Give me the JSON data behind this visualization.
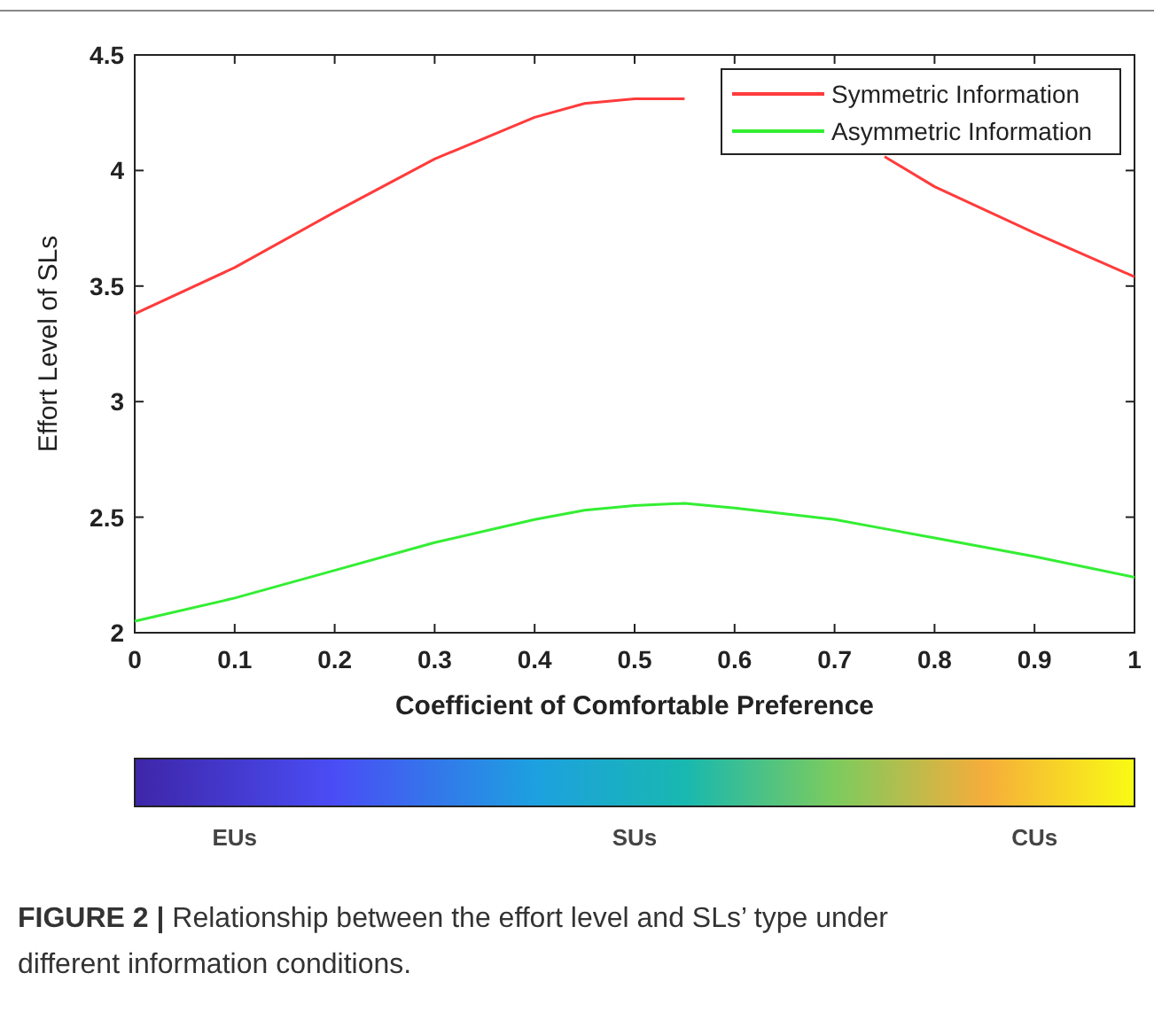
{
  "chart_data": {
    "type": "line",
    "xlabel": "Coefficient of Comfortable Preference",
    "ylabel": "Effort Level of SLs",
    "x": [
      0,
      0.1,
      0.2,
      0.3,
      0.4,
      0.45,
      0.5,
      0.55,
      0.6,
      0.7,
      0.75,
      0.8,
      0.9,
      1
    ],
    "series": [
      {
        "name": "Symmetric Information",
        "color": "#ff3b3b",
        "values": [
          3.38,
          3.58,
          3.82,
          4.05,
          4.23,
          4.29,
          4.31,
          4.31,
          null,
          null,
          4.06,
          3.93,
          3.73,
          3.54
        ]
      },
      {
        "name": "Asymmetric Information",
        "color": "#33ee33",
        "values": [
          2.05,
          2.15,
          2.27,
          2.39,
          2.49,
          2.53,
          2.55,
          2.56,
          2.54,
          2.49,
          2.45,
          2.41,
          2.33,
          2.24
        ]
      }
    ],
    "xlim": [
      0,
      1
    ],
    "xticks": [
      0,
      0.1,
      0.2,
      0.3,
      0.4,
      0.5,
      0.6,
      0.7,
      0.8,
      0.9,
      1
    ],
    "ylim": [
      2,
      4.5
    ],
    "yticks": [
      2,
      2.5,
      3,
      3.5,
      4,
      4.5
    ],
    "legend": "top right",
    "grid": false,
    "marker": "none",
    "line_style": "solid",
    "annotations": [
      "EUs",
      "SUs",
      "CUs",
      "FIGURE 2 | Relationship between the effort level and SLs’ type under different information conditions."
    ]
  }
}
